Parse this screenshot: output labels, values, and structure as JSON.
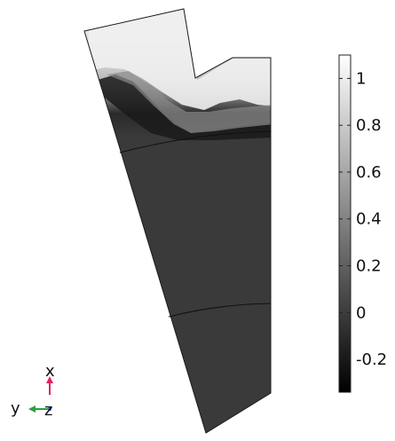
{
  "colorbar": {
    "ticks": [
      {
        "value": 1,
        "label": "1"
      },
      {
        "value": 0.8,
        "label": "0.8"
      },
      {
        "value": 0.6,
        "label": "0.6"
      },
      {
        "value": 0.4,
        "label": "0.4"
      },
      {
        "value": 0.2,
        "label": "0.2"
      },
      {
        "value": 0,
        "label": "0"
      },
      {
        "value": -0.2,
        "label": "-0.2"
      }
    ],
    "min": -0.34,
    "max": 1.1,
    "colors": {
      "low": "#000000",
      "high": "#ffffff"
    }
  },
  "triad": {
    "x_label": "x",
    "y_label": "y",
    "z_label": "z",
    "x_color": "#e0245e",
    "y_color": "#2e9e3e",
    "z_color": "#3060d0"
  },
  "colors": {
    "domain_fill": "#3a3a3a",
    "domain_edge": "#1a1a1a",
    "boundary_line": "#111111"
  }
}
